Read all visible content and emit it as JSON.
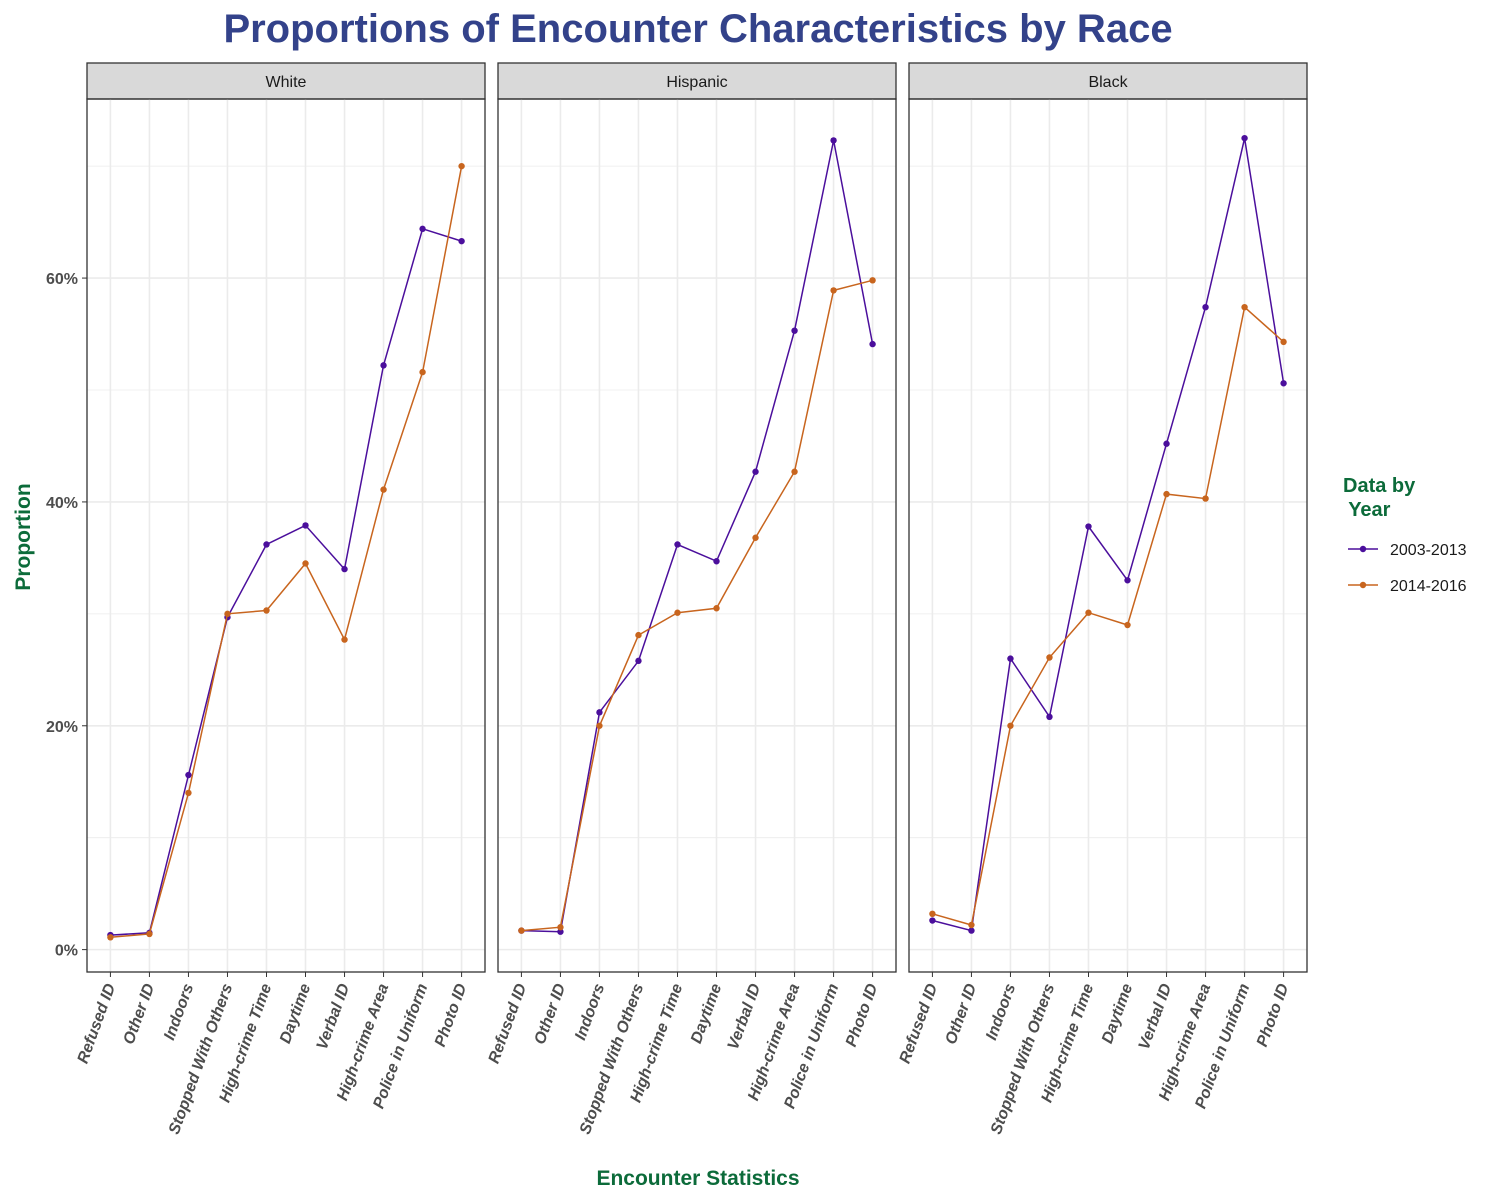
{
  "colors": {
    "title": "#33428a",
    "axis_title": "#0c6b3a",
    "legend_title": "#0c6b3a",
    "series_2003_2013": "#4b0f9c",
    "series_2014_2016": "#c8651e",
    "strip_background": "#d9d9d9",
    "grid": "#ebebeb",
    "panel_border": "#333333"
  },
  "chart_data": {
    "type": "line",
    "title": "Proportions of Encounter Characteristics by Race",
    "xlabel": "Encounter Statistics",
    "ylabel": "Proportion",
    "ylim": [
      -0.02,
      0.76
    ],
    "y_ticks": [
      0,
      0.2,
      0.4,
      0.6
    ],
    "y_tick_labels": [
      "0%",
      "20%",
      "40%",
      "60%"
    ],
    "grid": true,
    "legend": {
      "title": [
        "Data by",
        " Year"
      ],
      "placement": "right",
      "entries": [
        "2003-2013",
        "2014-2016"
      ]
    },
    "categories": [
      "Refused ID",
      "Other ID",
      "Indoors",
      "Stopped With Others",
      "High-crime Time",
      "Daytime",
      "Verbal ID",
      "High-crime Area",
      "Police in Uniform",
      "Photo ID"
    ],
    "panels": [
      {
        "label": "White",
        "series": [
          {
            "name": "2003-2013",
            "values": [
              0.013,
              0.015,
              0.156,
              0.297,
              0.362,
              0.379,
              0.34,
              0.522,
              0.644,
              0.633
            ]
          },
          {
            "name": "2014-2016",
            "values": [
              0.011,
              0.014,
              0.14,
              0.3,
              0.303,
              0.345,
              0.277,
              0.411,
              0.516,
              0.7
            ]
          }
        ]
      },
      {
        "label": "Hispanic",
        "series": [
          {
            "name": "2003-2013",
            "values": [
              0.017,
              0.016,
              0.212,
              0.258,
              0.362,
              0.347,
              0.427,
              0.553,
              0.723,
              0.541
            ]
          },
          {
            "name": "2014-2016",
            "values": [
              0.017,
              0.02,
              0.2,
              0.281,
              0.301,
              0.305,
              0.368,
              0.427,
              0.589,
              0.598
            ]
          }
        ]
      },
      {
        "label": "Black",
        "series": [
          {
            "name": "2003-2013",
            "values": [
              0.026,
              0.017,
              0.26,
              0.208,
              0.378,
              0.33,
              0.452,
              0.574,
              0.725,
              0.506
            ]
          },
          {
            "name": "2014-2016",
            "values": [
              0.032,
              0.022,
              0.2,
              0.261,
              0.301,
              0.29,
              0.407,
              0.403,
              0.574,
              0.543
            ]
          }
        ]
      }
    ]
  }
}
